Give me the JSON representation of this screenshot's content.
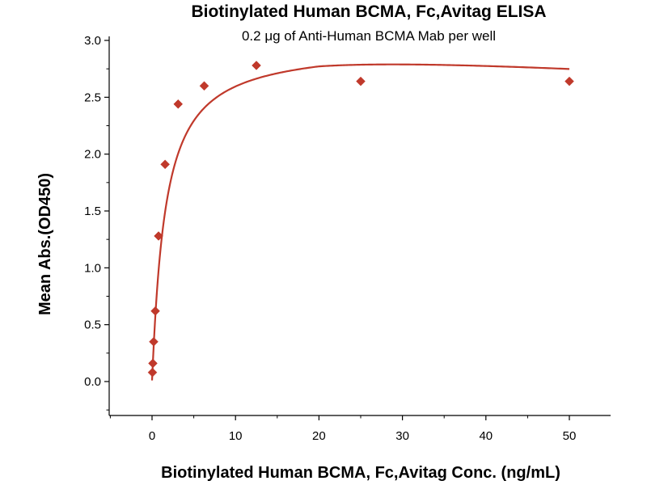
{
  "chart_data": {
    "type": "scatter",
    "title": "Biotinylated Human BCMA, Fc,Avitag ELISA",
    "subtitle": "0.2 μg of Anti-Human BCMA Mab per well",
    "xlabel": "Biotinylated Human BCMA, Fc,Avitag Conc. (ng/mL)",
    "ylabel": "Mean Abs.(OD450)",
    "xlim": [
      -5,
      55
    ],
    "ylim": [
      -0.3,
      3.0
    ],
    "xticks": [
      0,
      10,
      20,
      30,
      40,
      50
    ],
    "yticks": [
      0.0,
      0.5,
      1.0,
      1.5,
      2.0,
      2.5,
      3.0
    ],
    "xtick_labels": [
      "0",
      "10",
      "20",
      "30",
      "40",
      "50"
    ],
    "ytick_labels": [
      "0.0",
      "0.5",
      "1.0",
      "1.5",
      "2.0",
      "2.5",
      "3.0"
    ],
    "grid": false,
    "legend": "none",
    "series": [
      {
        "x": [
          0.049,
          0.098,
          0.195,
          0.391,
          0.781,
          1.563,
          3.125,
          6.25,
          12.5,
          25,
          50
        ],
        "y": [
          0.08,
          0.16,
          0.35,
          0.62,
          1.28,
          1.91,
          2.44,
          2.6,
          2.78,
          2.64,
          2.64
        ],
        "marker": "diamond",
        "color": "#c0392b",
        "fit_curve": true
      }
    ]
  }
}
